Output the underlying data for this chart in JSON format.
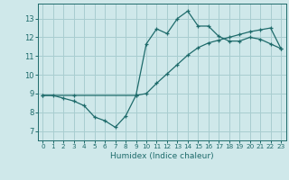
{
  "xlabel": "Humidex (Indice chaleur)",
  "bg_color": "#cfe8ea",
  "grid_color": "#a8cdd0",
  "line_color": "#1e6b6b",
  "xlim": [
    -0.5,
    23.5
  ],
  "ylim": [
    6.5,
    13.8
  ],
  "yticks": [
    7,
    8,
    9,
    10,
    11,
    12,
    13
  ],
  "xticks": [
    0,
    1,
    2,
    3,
    4,
    5,
    6,
    7,
    8,
    9,
    10,
    11,
    12,
    13,
    14,
    15,
    16,
    17,
    18,
    19,
    20,
    21,
    22,
    23
  ],
  "line1_x": [
    0,
    1,
    2,
    3,
    4,
    5,
    6,
    7,
    8,
    9,
    10,
    11,
    12,
    13,
    14,
    15,
    16,
    17,
    18,
    19,
    20,
    21,
    22,
    23
  ],
  "line1_y": [
    8.9,
    8.9,
    8.75,
    8.6,
    8.35,
    7.75,
    7.55,
    7.2,
    7.8,
    8.9,
    11.65,
    12.45,
    12.2,
    13.0,
    13.4,
    12.6,
    12.6,
    12.05,
    11.8,
    11.8,
    12.0,
    11.9,
    11.65,
    11.4
  ],
  "line2_x": [
    0,
    3,
    9,
    10,
    11,
    12,
    13,
    14,
    15,
    16,
    17,
    18,
    19,
    20,
    21,
    22,
    23
  ],
  "line2_y": [
    8.9,
    8.9,
    8.9,
    9.0,
    9.55,
    10.05,
    10.55,
    11.05,
    11.45,
    11.7,
    11.85,
    12.0,
    12.15,
    12.3,
    12.4,
    12.5,
    11.4
  ]
}
